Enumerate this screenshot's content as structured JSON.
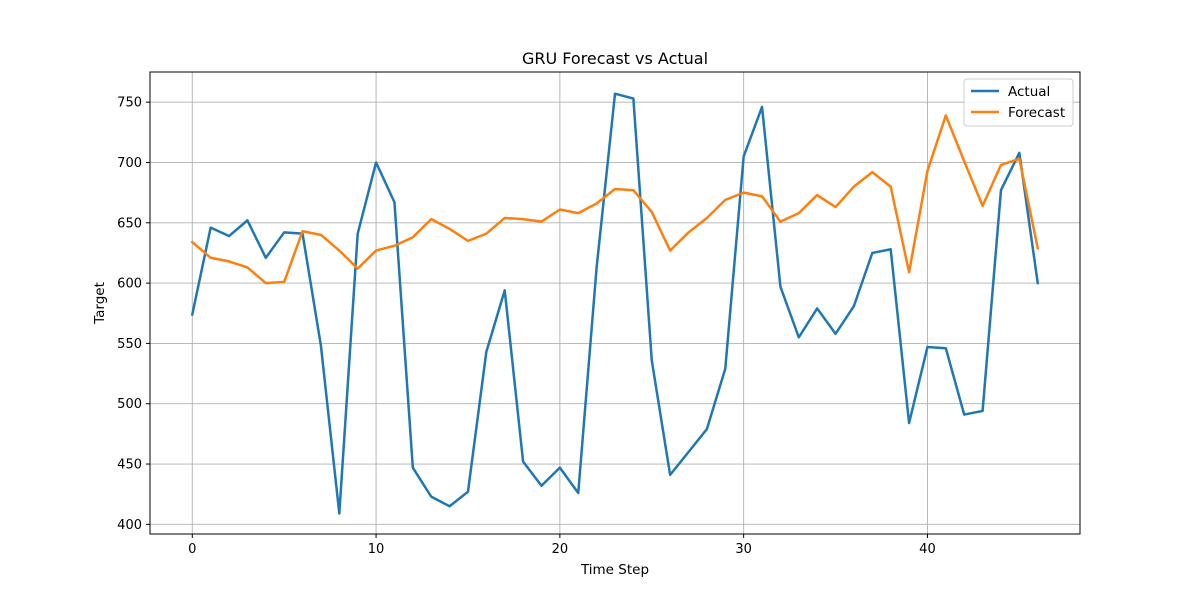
{
  "chart_data": {
    "type": "line",
    "title": "GRU Forecast vs Actual",
    "xlabel": "Time Step",
    "ylabel": "Target",
    "xlim": [
      -2.3,
      48.3
    ],
    "ylim": [
      392,
      775
    ],
    "xticks": [
      0,
      10,
      20,
      30,
      40
    ],
    "yticks": [
      400,
      450,
      500,
      550,
      600,
      650,
      700,
      750
    ],
    "grid": true,
    "legend_position": "top-right",
    "series": [
      {
        "name": "Actual",
        "color": "#1f77b4",
        "x": [
          0,
          1,
          2,
          3,
          4,
          5,
          6,
          7,
          8,
          9,
          10,
          11,
          12,
          13,
          14,
          15,
          16,
          17,
          18,
          19,
          20,
          21,
          22,
          23,
          24,
          25,
          26,
          27,
          28,
          29,
          30,
          31,
          32,
          33,
          34,
          35,
          36,
          37,
          38,
          39,
          40,
          41,
          42,
          43,
          44,
          45,
          46
        ],
        "values": [
          574,
          646,
          639,
          652,
          621,
          642,
          641,
          548,
          409,
          641,
          700,
          667,
          447,
          423,
          415,
          427,
          543,
          594,
          452,
          432,
          447,
          426,
          613,
          757,
          753,
          536,
          441,
          460,
          479,
          529,
          705,
          746,
          597,
          555,
          579,
          558,
          581,
          625,
          628,
          484,
          547,
          546,
          491,
          494,
          677,
          708,
          600
        ]
      },
      {
        "name": "Forecast",
        "color": "#ff7f0e",
        "x": [
          0,
          1,
          2,
          3,
          4,
          5,
          6,
          7,
          8,
          9,
          10,
          11,
          12,
          13,
          14,
          15,
          16,
          17,
          18,
          19,
          20,
          21,
          22,
          23,
          24,
          25,
          26,
          27,
          28,
          29,
          30,
          31,
          32,
          33,
          34,
          35,
          36,
          37,
          38,
          39,
          40,
          41,
          42,
          43,
          44,
          45,
          46
        ],
        "values": [
          634,
          621,
          618,
          613,
          600,
          601,
          643,
          640,
          627,
          612,
          627,
          631,
          638,
          653,
          645,
          635,
          641,
          654,
          653,
          651,
          661,
          658,
          666,
          678,
          677,
          659,
          627,
          642,
          654,
          669,
          675,
          672,
          651,
          658,
          673,
          663,
          680,
          692,
          680,
          609,
          693,
          739,
          701,
          664,
          698,
          703,
          629
        ]
      }
    ]
  }
}
